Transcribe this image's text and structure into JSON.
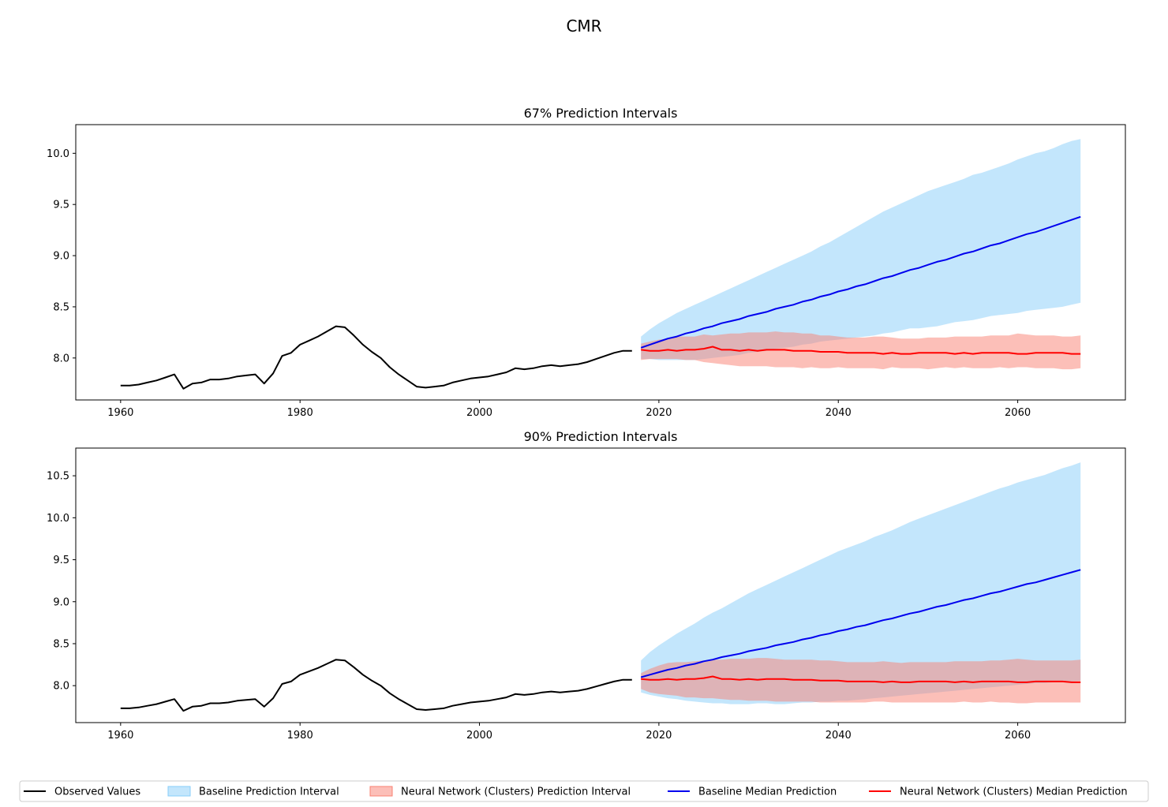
{
  "chart_data": {
    "type": "line",
    "title": "CMR",
    "legend_placement": "bottom-center",
    "colors": {
      "observed": "#000000",
      "baseline_band": "#87cefa",
      "nn_band": "#fa8072",
      "baseline_median": "#0000ee",
      "nn_median": "#ff0000"
    },
    "legend": [
      {
        "key": "observed",
        "label": "Observed Values",
        "kind": "line"
      },
      {
        "key": "baseline_band",
        "label": "Baseline Prediction Interval",
        "kind": "patch"
      },
      {
        "key": "nn_band",
        "label": "Neural Network (Clusters) Prediction Interval",
        "kind": "patch"
      },
      {
        "key": "baseline_median",
        "label": "Baseline Median Prediction",
        "kind": "line"
      },
      {
        "key": "nn_median",
        "label": "Neural Network (Clusters) Median Prediction",
        "kind": "line"
      }
    ],
    "observed": {
      "x": [
        1960,
        1961,
        1962,
        1963,
        1964,
        1965,
        1966,
        1967,
        1968,
        1969,
        1970,
        1971,
        1972,
        1973,
        1974,
        1975,
        1976,
        1977,
        1978,
        1979,
        1980,
        1981,
        1982,
        1983,
        1984,
        1985,
        1986,
        1987,
        1988,
        1989,
        1990,
        1991,
        1992,
        1993,
        1994,
        1995,
        1996,
        1997,
        1998,
        1999,
        2000,
        2001,
        2002,
        2003,
        2004,
        2005,
        2006,
        2007,
        2008,
        2009,
        2010,
        2011,
        2012,
        2013,
        2014,
        2015,
        2016,
        2017
      ],
      "y": [
        7.73,
        7.73,
        7.74,
        7.76,
        7.78,
        7.81,
        7.84,
        7.7,
        7.75,
        7.76,
        7.79,
        7.79,
        7.8,
        7.82,
        7.83,
        7.84,
        7.75,
        7.85,
        8.02,
        8.05,
        8.13,
        8.17,
        8.21,
        8.26,
        8.31,
        8.3,
        8.22,
        8.13,
        8.06,
        8.0,
        7.91,
        7.84,
        7.78,
        7.72,
        7.71,
        7.72,
        7.73,
        7.76,
        7.78,
        7.8,
        7.81,
        7.82,
        7.84,
        7.86,
        7.9,
        7.89,
        7.9,
        7.92,
        7.93,
        7.92,
        7.93,
        7.94,
        7.96,
        7.99,
        8.02,
        8.05,
        8.07,
        8.07
      ]
    },
    "forecast_x": [
      2018,
      2019,
      2020,
      2021,
      2022,
      2023,
      2024,
      2025,
      2026,
      2027,
      2028,
      2029,
      2030,
      2031,
      2032,
      2033,
      2034,
      2035,
      2036,
      2037,
      2038,
      2039,
      2040,
      2041,
      2042,
      2043,
      2044,
      2045,
      2046,
      2047,
      2048,
      2049,
      2050,
      2051,
      2052,
      2053,
      2054,
      2055,
      2056,
      2057,
      2058,
      2059,
      2060,
      2061,
      2062,
      2063,
      2064,
      2065,
      2066,
      2067
    ],
    "baseline_median": [
      8.1,
      8.13,
      8.16,
      8.19,
      8.21,
      8.24,
      8.26,
      8.29,
      8.31,
      8.34,
      8.36,
      8.38,
      8.41,
      8.43,
      8.45,
      8.48,
      8.5,
      8.52,
      8.55,
      8.57,
      8.6,
      8.62,
      8.65,
      8.67,
      8.7,
      8.72,
      8.75,
      8.78,
      8.8,
      8.83,
      8.86,
      8.88,
      8.91,
      8.94,
      8.96,
      8.99,
      9.02,
      9.04,
      9.07,
      9.1,
      9.12,
      9.15,
      9.18,
      9.21,
      9.23,
      9.26,
      9.29,
      9.32,
      9.35,
      9.38
    ],
    "nn_median": [
      8.08,
      8.07,
      8.07,
      8.08,
      8.07,
      8.08,
      8.08,
      8.09,
      8.11,
      8.08,
      8.08,
      8.07,
      8.08,
      8.07,
      8.08,
      8.08,
      8.08,
      8.07,
      8.07,
      8.07,
      8.06,
      8.06,
      8.06,
      8.05,
      8.05,
      8.05,
      8.05,
      8.04,
      8.05,
      8.04,
      8.04,
      8.05,
      8.05,
      8.05,
      8.05,
      8.04,
      8.05,
      8.04,
      8.05,
      8.05,
      8.05,
      8.05,
      8.04,
      8.04,
      8.05,
      8.05,
      8.05,
      8.05,
      8.04,
      8.04
    ],
    "panels": [
      {
        "title": "67% Prediction Intervals",
        "xlim": [
          1955,
          2072
        ],
        "ylim": [
          7.59,
          10.28
        ],
        "xticks": [
          1960,
          1980,
          2000,
          2020,
          2040,
          2060
        ],
        "yticks": [
          8.0,
          8.5,
          9.0,
          9.5,
          10.0
        ],
        "baseline_lower": [
          7.99,
          7.99,
          7.98,
          7.98,
          7.98,
          7.98,
          7.98,
          7.99,
          8.0,
          8.01,
          8.02,
          8.03,
          8.05,
          8.06,
          8.07,
          8.09,
          8.1,
          8.11,
          8.13,
          8.14,
          8.16,
          8.17,
          8.18,
          8.19,
          8.2,
          8.21,
          8.22,
          8.24,
          8.25,
          8.27,
          8.29,
          8.29,
          8.3,
          8.31,
          8.33,
          8.35,
          8.36,
          8.37,
          8.39,
          8.41,
          8.42,
          8.43,
          8.44,
          8.46,
          8.47,
          8.48,
          8.49,
          8.5,
          8.52,
          8.54
        ],
        "baseline_upper": [
          8.21,
          8.28,
          8.34,
          8.39,
          8.44,
          8.48,
          8.52,
          8.56,
          8.6,
          8.64,
          8.68,
          8.72,
          8.76,
          8.8,
          8.84,
          8.88,
          8.92,
          8.96,
          9.0,
          9.04,
          9.09,
          9.13,
          9.18,
          9.23,
          9.28,
          9.33,
          9.38,
          9.43,
          9.47,
          9.51,
          9.55,
          9.59,
          9.63,
          9.66,
          9.69,
          9.72,
          9.75,
          9.79,
          9.81,
          9.84,
          9.87,
          9.9,
          9.94,
          9.97,
          10.0,
          10.02,
          10.05,
          10.09,
          10.12,
          10.14
        ],
        "nn_lower": [
          7.98,
          7.99,
          7.99,
          7.99,
          7.99,
          7.98,
          7.98,
          7.96,
          7.95,
          7.94,
          7.93,
          7.92,
          7.92,
          7.92,
          7.92,
          7.91,
          7.91,
          7.91,
          7.9,
          7.91,
          7.9,
          7.9,
          7.91,
          7.9,
          7.9,
          7.9,
          7.9,
          7.89,
          7.91,
          7.9,
          7.9,
          7.9,
          7.89,
          7.9,
          7.91,
          7.9,
          7.91,
          7.9,
          7.9,
          7.9,
          7.91,
          7.9,
          7.91,
          7.91,
          7.9,
          7.9,
          7.9,
          7.89,
          7.89,
          7.9
        ],
        "nn_upper": [
          8.14,
          8.16,
          8.18,
          8.19,
          8.21,
          8.21,
          8.21,
          8.23,
          8.22,
          8.23,
          8.24,
          8.24,
          8.25,
          8.25,
          8.25,
          8.26,
          8.25,
          8.25,
          8.24,
          8.24,
          8.22,
          8.22,
          8.21,
          8.2,
          8.2,
          8.2,
          8.21,
          8.21,
          8.2,
          8.19,
          8.19,
          8.19,
          8.2,
          8.2,
          8.2,
          8.21,
          8.21,
          8.21,
          8.21,
          8.22,
          8.22,
          8.22,
          8.24,
          8.23,
          8.22,
          8.22,
          8.22,
          8.21,
          8.21,
          8.22
        ]
      },
      {
        "title": "90% Prediction Intervals",
        "xlim": [
          1955,
          2072
        ],
        "ylim": [
          7.56,
          10.83
        ],
        "xticks": [
          1960,
          1980,
          2000,
          2020,
          2040,
          2060
        ],
        "yticks": [
          8.0,
          8.5,
          9.0,
          9.5,
          10.0,
          10.5
        ],
        "baseline_lower": [
          7.92,
          7.89,
          7.87,
          7.85,
          7.84,
          7.82,
          7.81,
          7.8,
          7.79,
          7.79,
          7.78,
          7.78,
          7.78,
          7.79,
          7.79,
          7.78,
          7.78,
          7.79,
          7.8,
          7.8,
          7.81,
          7.81,
          7.82,
          7.82,
          7.83,
          7.84,
          7.85,
          7.86,
          7.87,
          7.88,
          7.89,
          7.9,
          7.91,
          7.92,
          7.93,
          7.94,
          7.95,
          7.96,
          7.97,
          7.98,
          7.99,
          8.0,
          8.01,
          8.02,
          8.03,
          8.03,
          8.04,
          8.04,
          8.05,
          8.06
        ],
        "baseline_upper": [
          8.3,
          8.4,
          8.48,
          8.55,
          8.62,
          8.68,
          8.74,
          8.81,
          8.87,
          8.92,
          8.98,
          9.04,
          9.1,
          9.15,
          9.2,
          9.25,
          9.3,
          9.35,
          9.4,
          9.45,
          9.5,
          9.55,
          9.6,
          9.64,
          9.68,
          9.72,
          9.77,
          9.81,
          9.85,
          9.9,
          9.95,
          9.99,
          10.03,
          10.07,
          10.11,
          10.15,
          10.19,
          10.23,
          10.27,
          10.31,
          10.35,
          10.38,
          10.42,
          10.45,
          10.48,
          10.51,
          10.55,
          10.59,
          10.62,
          10.66
        ],
        "nn_lower": [
          7.96,
          7.92,
          7.9,
          7.89,
          7.88,
          7.86,
          7.86,
          7.85,
          7.85,
          7.84,
          7.83,
          7.83,
          7.82,
          7.82,
          7.82,
          7.81,
          7.81,
          7.81,
          7.81,
          7.81,
          7.8,
          7.8,
          7.8,
          7.8,
          7.8,
          7.8,
          7.81,
          7.81,
          7.8,
          7.8,
          7.8,
          7.8,
          7.8,
          7.8,
          7.8,
          7.8,
          7.81,
          7.8,
          7.8,
          7.81,
          7.8,
          7.8,
          7.79,
          7.79,
          7.8,
          7.8,
          7.8,
          7.8,
          7.8,
          7.8
        ],
        "nn_upper": [
          8.15,
          8.2,
          8.24,
          8.27,
          8.28,
          8.28,
          8.29,
          8.3,
          8.31,
          8.31,
          8.32,
          8.32,
          8.32,
          8.33,
          8.33,
          8.32,
          8.31,
          8.31,
          8.31,
          8.31,
          8.3,
          8.3,
          8.29,
          8.28,
          8.28,
          8.28,
          8.28,
          8.29,
          8.28,
          8.27,
          8.28,
          8.28,
          8.28,
          8.28,
          8.28,
          8.29,
          8.29,
          8.29,
          8.29,
          8.3,
          8.3,
          8.31,
          8.32,
          8.31,
          8.3,
          8.3,
          8.3,
          8.3,
          8.3,
          8.31
        ]
      }
    ]
  }
}
